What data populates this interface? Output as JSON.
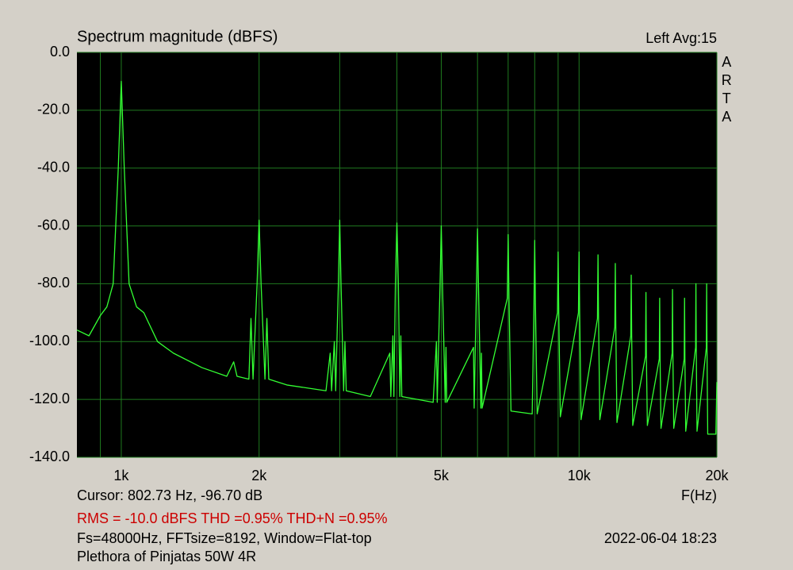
{
  "chart_data": {
    "type": "line",
    "title": "Spectrum magnitude (dBFS)",
    "channel_info": "Left  Avg:15",
    "brand": "ARTA",
    "xlabel": "F(Hz)",
    "cursor": "Cursor: 802.73 Hz, -96.70 dB",
    "measurement": "RMS =  -10.0 dBFS  THD =0.95%  THD+N =0.95%",
    "settings": "Fs=48000Hz, FFTsize=8192, Window=Flat-top",
    "timestamp": "2022-06-04  18:23",
    "note": "Plethora of Pinjatas 50W 4R",
    "log_x": true,
    "grid": true,
    "color": "#33ff33",
    "xlim": [
      800,
      20000
    ],
    "xticks": [
      {
        "value": 1000,
        "label": "1k"
      },
      {
        "value": 2000,
        "label": "2k"
      },
      {
        "value": 5000,
        "label": "5k"
      },
      {
        "value": 10000,
        "label": "10k"
      },
      {
        "value": 20000,
        "label": "20k"
      }
    ],
    "xminorticks": [
      900,
      3000,
      4000,
      6000,
      7000,
      8000,
      9000
    ],
    "ylim": [
      -140,
      0
    ],
    "yticks": [
      {
        "value": 0,
        "label": "0.0"
      },
      {
        "value": -20,
        "label": "-20.0"
      },
      {
        "value": -40,
        "label": "-40.0"
      },
      {
        "value": -60,
        "label": "-60.0"
      },
      {
        "value": -80,
        "label": "-80.0"
      },
      {
        "value": -100,
        "label": "-100.0"
      },
      {
        "value": -120,
        "label": "-120.0"
      },
      {
        "value": -140,
        "label": "-140.0"
      }
    ],
    "x": [
      800,
      850,
      900,
      930,
      960,
      985,
      1000,
      1015,
      1040,
      1080,
      1120,
      1200,
      1300,
      1500,
      1700,
      1760,
      1790,
      1900,
      1920,
      1940,
      1980,
      2000,
      2020,
      2060,
      2080,
      2100,
      2300,
      2800,
      2860,
      2880,
      2920,
      2940,
      2980,
      3000,
      3020,
      3060,
      3080,
      3100,
      3500,
      3860,
      3880,
      3920,
      3940,
      3970,
      4000,
      4030,
      4060,
      4080,
      4100,
      4800,
      4880,
      4900,
      4970,
      5000,
      5030,
      5100,
      5120,
      5140,
      5880,
      5900,
      5970,
      6000,
      6030,
      6100,
      6120,
      6140,
      6970,
      7000,
      7030,
      7100,
      7900,
      7970,
      8000,
      8030,
      8100,
      8970,
      9000,
      9030,
      9100,
      9970,
      10000,
      10030,
      10100,
      10970,
      11000,
      11030,
      11100,
      11970,
      12000,
      12030,
      12100,
      12970,
      13000,
      13030,
      13100,
      13970,
      14000,
      14030,
      14100,
      14970,
      15000,
      15030,
      15100,
      15970,
      16000,
      16030,
      16100,
      16970,
      17000,
      17030,
      17100,
      17970,
      18000,
      18030,
      18100,
      18970,
      19000,
      19030,
      19100,
      19900,
      20000
    ],
    "values": [
      -96,
      -98,
      -91,
      -88,
      -80,
      -40,
      -10,
      -40,
      -80,
      -88,
      -90,
      -100,
      -104,
      -109,
      -112,
      -107,
      -112,
      -113,
      -92,
      -113,
      -80,
      -58,
      -80,
      -113,
      -92,
      -113,
      -115,
      -117,
      -104,
      -117,
      -100,
      -117,
      -80,
      -58,
      -80,
      -117,
      -100,
      -117,
      -119,
      -104,
      -119,
      -98,
      -119,
      -80,
      -59,
      -80,
      -119,
      -98,
      -119,
      -121,
      -100,
      -121,
      -80,
      -60,
      -80,
      -121,
      -102,
      -121,
      -102,
      -123,
      -80,
      -61,
      -80,
      -123,
      -104,
      -123,
      -85,
      -63,
      -85,
      -124,
      -125,
      -87,
      -65,
      -87,
      -125,
      -90,
      -69,
      -90,
      -126,
      -90,
      -69,
      -90,
      -127,
      -92,
      -70,
      -92,
      -127,
      -95,
      -73,
      -95,
      -128,
      -98,
      -77,
      -98,
      -129,
      -105,
      -83,
      -105,
      -129,
      -106,
      -85,
      -106,
      -130,
      -104,
      -82,
      -104,
      -130,
      -106,
      -85,
      -106,
      -131,
      -102,
      -80,
      -102,
      -131,
      -102,
      -80,
      -102,
      -132,
      -132,
      -114
    ]
  }
}
